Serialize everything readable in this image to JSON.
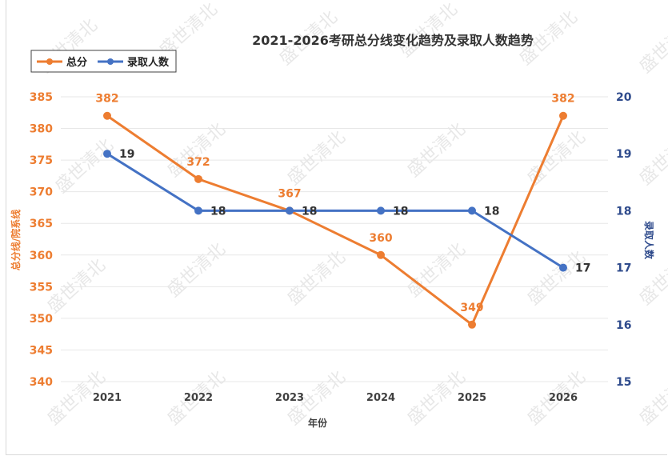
{
  "chart_data": {
    "type": "line",
    "title": "2021-2026考研总分线变化趋势及录取人数趋势",
    "categories": [
      "2021",
      "2022",
      "2023",
      "2024",
      "2025",
      "2026"
    ],
    "xlabel": "年份",
    "ylabel_left": "总分线/院系线",
    "ylabel_right": "录取人数",
    "ylim_left": [
      340,
      385
    ],
    "yticks_left": [
      340,
      345,
      350,
      355,
      360,
      365,
      370,
      375,
      380,
      385
    ],
    "ylim_right": [
      15,
      20
    ],
    "yticks_right": [
      15,
      16,
      17,
      18,
      19,
      20
    ],
    "grid": true,
    "legend": "top-left",
    "series": [
      {
        "name": "总分",
        "axis": "left",
        "color": "#ed7d31",
        "values": [
          382,
          372,
          367,
          360,
          349,
          382
        ],
        "labels": [
          "382",
          "372",
          "367",
          "360",
          "349",
          "382"
        ]
      },
      {
        "name": "录取人数",
        "axis": "right",
        "color": "#4472c4",
        "values": [
          19,
          18,
          18,
          18,
          18,
          17
        ],
        "labels": [
          "19",
          "18",
          "18",
          "18",
          "18",
          "17"
        ]
      }
    ]
  },
  "watermark": {
    "text": "盛世清北"
  }
}
